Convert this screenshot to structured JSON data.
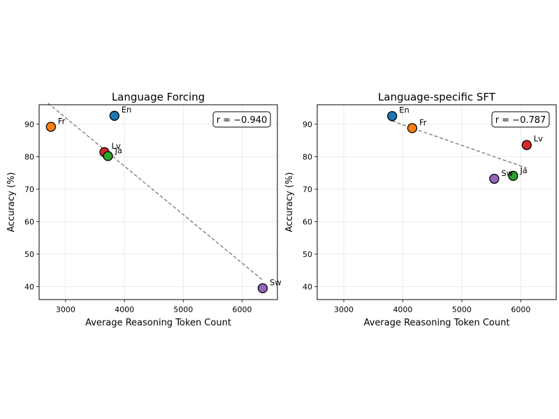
{
  "chart_data": [
    {
      "type": "scatter",
      "title": "Language Forcing",
      "xlabel": "Average Reasoning Token Count",
      "ylabel": "Accuracy (%)",
      "xlim": [
        2550,
        6600
      ],
      "ylim": [
        36,
        96
      ],
      "xticks": [
        3000,
        4000,
        5000,
        6000
      ],
      "yticks": [
        40,
        50,
        60,
        70,
        80,
        90
      ],
      "grid": true,
      "correlation_label": "r = −0.940",
      "fit_line": {
        "x": [
          2700,
          6350
        ],
        "y": [
          96.5,
          42
        ]
      },
      "points": [
        {
          "label": "Fr",
          "x": 2750,
          "y": 89.2,
          "color": "#ff7f0e"
        },
        {
          "label": "En",
          "x": 3830,
          "y": 92.6,
          "color": "#1f77b4"
        },
        {
          "label": "Lv",
          "x": 3660,
          "y": 81.4,
          "color": "#d62728"
        },
        {
          "label": "Ja",
          "x": 3720,
          "y": 80.2,
          "color": "#2ca02c"
        },
        {
          "label": "Sw",
          "x": 6350,
          "y": 39.5,
          "color": "#9467bd"
        }
      ]
    },
    {
      "type": "scatter",
      "title": "Language-specific SFT",
      "xlabel": "Average Reasoning Token Count",
      "ylabel": "Accuracy (%)",
      "xlim": [
        2550,
        6600
      ],
      "ylim": [
        36,
        96
      ],
      "xticks": [
        3000,
        4000,
        5000,
        6000
      ],
      "yticks": [
        40,
        50,
        60,
        70,
        80,
        90
      ],
      "grid": true,
      "correlation_label": "r = −0.787",
      "fit_line": {
        "x": [
          3820,
          6100
        ],
        "y": [
          91,
          76.5
        ]
      },
      "points": [
        {
          "label": "En",
          "x": 3820,
          "y": 92.5,
          "color": "#1f77b4"
        },
        {
          "label": "Fr",
          "x": 4160,
          "y": 88.8,
          "color": "#ff7f0e"
        },
        {
          "label": "Lv",
          "x": 6100,
          "y": 83.6,
          "color": "#d62728"
        },
        {
          "label": "Ja",
          "x": 5870,
          "y": 74.1,
          "color": "#2ca02c"
        },
        {
          "label": "Sw",
          "x": 5550,
          "y": 73.2,
          "color": "#9467bd"
        }
      ]
    }
  ]
}
